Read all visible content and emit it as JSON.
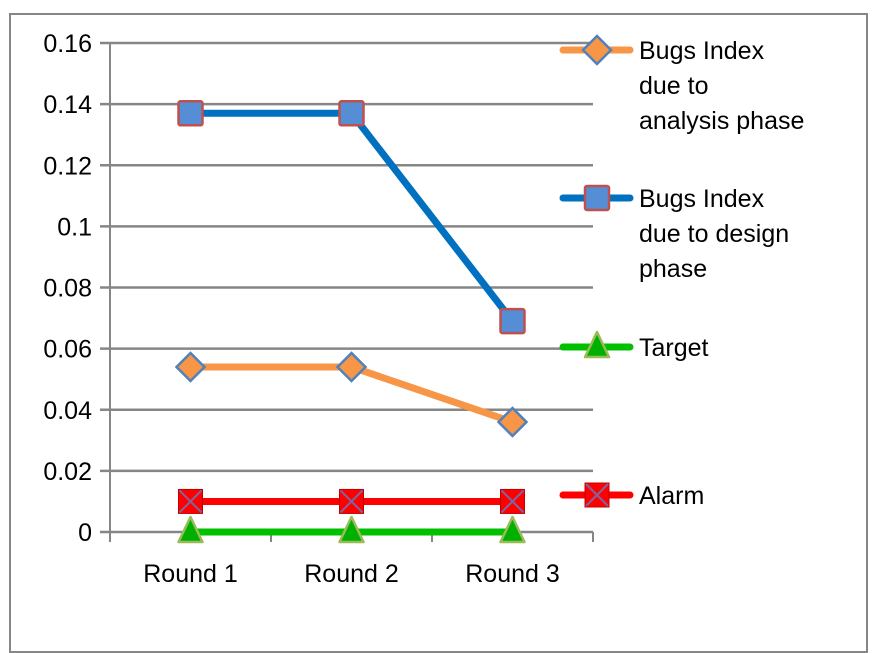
{
  "chart_data": {
    "type": "line",
    "title": "",
    "xlabel": "",
    "ylabel": "",
    "categories": [
      "Round 1",
      "Round 2",
      "Round 3"
    ],
    "ylim": [
      0,
      0.16
    ],
    "yticks": [
      "0",
      "0.02",
      "0.04",
      "0.06",
      "0.08",
      "0.1",
      "0.12",
      "0.14",
      "0.16"
    ],
    "grid": true,
    "legend_position": "right",
    "series": [
      {
        "name": "Bugs Index due to analysis phase",
        "legend_lines": [
          "Bugs Index",
          "due to",
          "analysis phase"
        ],
        "values": [
          0.054,
          0.054,
          0.036
        ],
        "color": "#F79646",
        "marker": "diamond",
        "marker_fill": "#F79646",
        "marker_stroke": "#4F81BD"
      },
      {
        "name": "Bugs Index due to design phase",
        "legend_lines": [
          "Bugs Index",
          "due to design",
          "phase"
        ],
        "values": [
          0.137,
          0.137,
          0.069
        ],
        "color": "#0070C0",
        "marker": "square",
        "marker_fill": "#558ED5",
        "marker_stroke": "#C0504D"
      },
      {
        "name": "Target",
        "legend_lines": [
          "Target"
        ],
        "values": [
          0,
          0,
          0
        ],
        "color": "#00C000",
        "marker": "triangle",
        "marker_fill": "#00B000",
        "marker_stroke": "#9BBB59"
      },
      {
        "name": "Alarm",
        "legend_lines": [
          "Alarm"
        ],
        "values": [
          0.01,
          0.01,
          0.01
        ],
        "color": "#FF0000",
        "marker": "x-square",
        "marker_fill": "#FF0000",
        "marker_stroke": "#8064A2"
      }
    ]
  }
}
